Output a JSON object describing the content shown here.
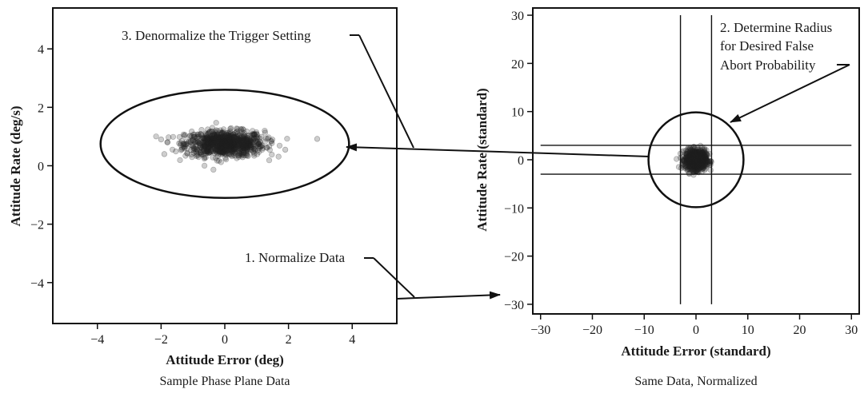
{
  "chart_data": [
    {
      "type": "scatter",
      "title": "",
      "caption": "Sample Phase Plane Data",
      "xlabel": "Attitude Error (deg)",
      "ylabel": "Attitude Rate (deg/s)",
      "xlim": [
        -5.4,
        5.4
      ],
      "ylim": [
        -5.4,
        5.4
      ],
      "xticks": [
        -4,
        -2,
        0,
        2,
        4
      ],
      "yticks": [
        4,
        2,
        0,
        -2,
        -4
      ],
      "xtick_labels": [
        "−4",
        "−2",
        "0",
        "2",
        "4"
      ],
      "ytick_labels": [
        "4",
        "2",
        "0",
        "−2",
        "−4"
      ],
      "grid": false,
      "cluster": {
        "center_x": 0.0,
        "center_y": 0.75,
        "sd_x": 0.62,
        "sd_y": 0.22,
        "n_points": 900,
        "color": "#222222"
      },
      "outliers": [
        [
          2.9,
          0.92
        ],
        [
          -2.0,
          0.9
        ],
        [
          -1.9,
          0.4
        ],
        [
          1.9,
          0.55
        ]
      ],
      "trigger_ellipse": {
        "center_x": 0.0,
        "center_y": 0.75,
        "semi_x": 3.9,
        "semi_y": 1.85
      }
    },
    {
      "type": "scatter",
      "title": "",
      "caption": "Same Data, Normalized",
      "xlabel": "Attitude Error (standard)",
      "ylabel": "Attitude Rate (standard)",
      "xlim": [
        -31.5,
        31.5
      ],
      "ylim": [
        -32,
        31.5
      ],
      "xticks": [
        -30,
        -20,
        -10,
        0,
        10,
        20,
        30
      ],
      "yticks": [
        30,
        20,
        10,
        0,
        -10,
        -20,
        -30
      ],
      "xtick_labels": [
        "−30",
        "−20",
        "−10",
        "0",
        "10",
        "20",
        "30"
      ],
      "ytick_labels": [
        "30",
        "20",
        "10",
        "0",
        "−10",
        "−20",
        "−30"
      ],
      "grid": false,
      "cluster": {
        "center_x": 0.0,
        "center_y": 0.0,
        "sd_x": 1.0,
        "sd_y": 1.0,
        "n_points": 900,
        "color": "#222222"
      },
      "vlines": [
        -3,
        3
      ],
      "hlines": [
        3,
        -3
      ],
      "line_extent": 30,
      "radius_circle": {
        "center_x": 0.0,
        "center_y": 0.0,
        "radius": 9.5
      }
    }
  ],
  "annotations": {
    "step1": "1. Normalize Data",
    "step2_line1": "2. Determine Radius",
    "step2_line2": "for Desired False",
    "step2_line3": "Abort Probability",
    "step3": "3. Denormalize the Trigger Setting"
  }
}
